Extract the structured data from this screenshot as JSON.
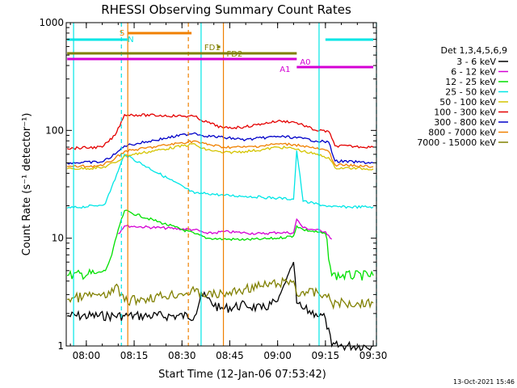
{
  "chart_data": {
    "type": "line",
    "title": "RHESSI Observing Summary Count Rates",
    "xlabel": "Start Time (12-Jan-06 07:53:42)",
    "ylabel": "Count Rate (s⁻¹ detector⁻¹)",
    "y_scale": "log",
    "ylim": [
      1,
      1000
    ],
    "xlim": [
      "07:53:42",
      "09:31:00"
    ],
    "x_ticks": [
      "08:00",
      "08:15",
      "08:30",
      "08:45",
      "09:00",
      "09:15",
      "09:30"
    ],
    "y_ticks": [
      "1",
      "10",
      "100",
      "1000"
    ],
    "legend": {
      "header": "Det 1,3,4,5,6,9",
      "position": "right"
    },
    "series": [
      {
        "name": "3 - 6 keV",
        "color": "#000000",
        "x": [
          "07:54",
          "08:12",
          "08:34",
          "08:36",
          "08:42",
          "08:50",
          "08:55",
          "09:00",
          "09:05",
          "09:06",
          "09:08",
          "09:12",
          "09:15",
          "09:17",
          "09:30"
        ],
        "y": [
          1.9,
          1.9,
          1.9,
          3.0,
          2.2,
          2.4,
          2.2,
          2.6,
          6.0,
          2.5,
          2.2,
          2.0,
          1.8,
          1.0,
          1.0
        ]
      },
      {
        "name": "6 - 12 keV",
        "color": "#d400d4",
        "x": [
          "08:10",
          "08:12",
          "08:34",
          "08:38",
          "08:43",
          "08:50",
          "08:55",
          "09:00",
          "09:05",
          "09:06",
          "09:08",
          "09:15",
          "09:17"
        ],
        "y": [
          11,
          13,
          12,
          11,
          11.5,
          11.2,
          11,
          11.3,
          11.2,
          15,
          12.5,
          11.5,
          9.8
        ]
      },
      {
        "name": "12 - 25 keV",
        "color": "#00e000",
        "x": [
          "07:54",
          "08:03",
          "08:06",
          "08:08",
          "08:10",
          "08:12",
          "08:34",
          "08:38",
          "08:43",
          "08:50",
          "08:55",
          "09:00",
          "09:05",
          "09:06",
          "09:08",
          "09:15",
          "09:17",
          "09:30"
        ],
        "y": [
          4.5,
          4.7,
          5,
          7,
          12,
          18,
          11,
          10,
          9.8,
          9.7,
          9.8,
          10,
          10.5,
          13,
          12,
          11,
          4.5,
          4.5
        ]
      },
      {
        "name": "25 - 50 keV",
        "color": "#00e6e6",
        "x": [
          "07:54",
          "08:03",
          "08:06",
          "08:08",
          "08:10",
          "08:12",
          "08:34",
          "08:38",
          "08:43",
          "08:50",
          "08:55",
          "09:00",
          "09:05",
          "09:06",
          "09:08",
          "09:15",
          "09:17",
          "09:30"
        ],
        "y": [
          19,
          20,
          21,
          30,
          42,
          60,
          26,
          26,
          25,
          24.5,
          24,
          23.5,
          23,
          65,
          22,
          20,
          19.5,
          19.5
        ]
      },
      {
        "name": "50 - 100 keV",
        "color": "#d4c400",
        "x": [
          "07:54",
          "08:05",
          "08:10",
          "08:12",
          "08:34",
          "08:36",
          "08:43",
          "08:50",
          "08:55",
          "09:00",
          "09:05",
          "09:08",
          "09:12",
          "09:16",
          "09:18",
          "09:30"
        ],
        "y": [
          44,
          45,
          52,
          58,
          75,
          68,
          62,
          64,
          66,
          70,
          68,
          64,
          60,
          56,
          45,
          44
        ]
      },
      {
        "name": "100 - 300 keV",
        "color": "#e40000",
        "x": [
          "07:54",
          "08:05",
          "08:09",
          "08:12",
          "08:34",
          "08:36",
          "08:43",
          "08:50",
          "08:55",
          "09:00",
          "09:05",
          "09:08",
          "09:12",
          "09:16",
          "09:18",
          "09:30"
        ],
        "y": [
          68,
          70,
          90,
          140,
          135,
          125,
          105,
          108,
          115,
          122,
          120,
          112,
          100,
          98,
          72,
          70
        ]
      },
      {
        "name": "300 - 800 keV",
        "color": "#0000c8",
        "x": [
          "07:54",
          "08:05",
          "08:09",
          "08:12",
          "08:34",
          "08:36",
          "08:43",
          "08:50",
          "08:55",
          "09:00",
          "09:05",
          "09:08",
          "09:12",
          "09:16",
          "09:18",
          "09:30"
        ],
        "y": [
          50,
          51,
          60,
          72,
          95,
          90,
          86,
          82,
          85,
          88,
          86,
          84,
          80,
          78,
          52,
          50
        ]
      },
      {
        "name": "800 - 7000 keV",
        "color": "#f08000",
        "x": [
          "07:54",
          "08:05",
          "08:09",
          "08:12",
          "08:34",
          "08:36",
          "08:43",
          "08:50",
          "08:55",
          "09:00",
          "09:05",
          "09:08",
          "09:12",
          "09:16",
          "09:18",
          "09:30"
        ],
        "y": [
          46,
          47,
          55,
          64,
          80,
          76,
          70,
          70,
          72,
          75,
          74,
          72,
          68,
          64,
          48,
          46
        ]
      },
      {
        "name": "7000 - 15000 keV",
        "color": "#808000",
        "x": [
          "07:54",
          "08:03",
          "08:06",
          "08:09",
          "08:12",
          "08:34",
          "08:38",
          "08:43",
          "08:50",
          "08:55",
          "09:00",
          "09:05",
          "09:06",
          "09:08",
          "09:15",
          "09:17",
          "09:30"
        ],
        "y": [
          2.7,
          3.0,
          2.8,
          3.6,
          2.6,
          3.2,
          3.0,
          3.0,
          3.4,
          3.6,
          3.8,
          4.0,
          3.0,
          3.2,
          3.0,
          2.5,
          2.5
        ]
      }
    ],
    "flag_bars": [
      {
        "label": "S",
        "color": "#f08000",
        "x": [
          "08:13",
          "08:33"
        ]
      },
      {
        "label": "N",
        "color": "#00e6e6",
        "x": [
          "07:54",
          "08:13"
        ]
      },
      {
        "label": "N",
        "color": "#00e6e6",
        "x": [
          "09:15",
          "09:30"
        ]
      },
      {
        "label": "FD1",
        "color": "#808000",
        "x": [
          "08:41",
          "08:42"
        ]
      },
      {
        "label": "FD2",
        "color": "#808000",
        "x": [
          "07:54",
          "09:06"
        ]
      },
      {
        "label": "A0",
        "color": "#d400d4",
        "x": [
          "07:54",
          "09:06"
        ]
      },
      {
        "label": "A1",
        "color": "#d400d4",
        "x": [
          "09:06",
          "09:30"
        ]
      }
    ],
    "vertical_markers": [
      {
        "color": "#00e6e6",
        "x": "07:56",
        "style": "solid"
      },
      {
        "color": "#00e6e6",
        "x": "08:11",
        "style": "dashed"
      },
      {
        "color": "#f08000",
        "x": "08:13",
        "style": "solid"
      },
      {
        "color": "#f08000",
        "x": "08:32",
        "style": "dashed"
      },
      {
        "color": "#00e6e6",
        "x": "08:36",
        "style": "solid"
      },
      {
        "color": "#f08000",
        "x": "08:43",
        "style": "solid"
      },
      {
        "color": "#00e6e6",
        "x": "09:13",
        "style": "solid"
      },
      {
        "color": "#00e6e6",
        "x": "09:31",
        "style": "dashed"
      }
    ],
    "timestamp": "13-Oct-2021 15:46"
  }
}
